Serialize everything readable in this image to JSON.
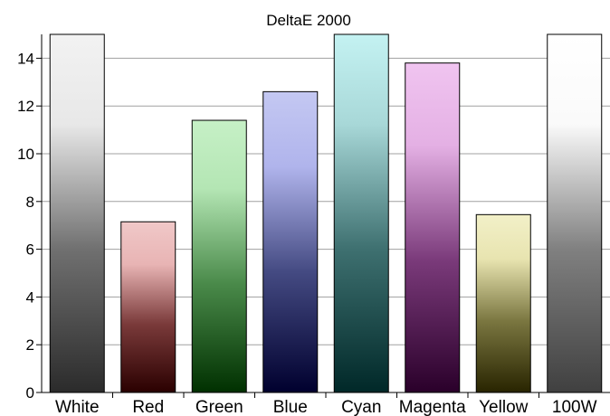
{
  "chart_data": {
    "type": "bar",
    "title": "DeltaE 2000",
    "xlabel": "",
    "ylabel": "",
    "ylim": [
      0,
      15
    ],
    "yticks": [
      0,
      2,
      4,
      6,
      8,
      10,
      12,
      14
    ],
    "grid": true,
    "legend": "none",
    "categories": [
      "White",
      "Red",
      "Green",
      "Blue",
      "Cyan",
      "Magenta",
      "Yellow",
      "100W"
    ],
    "values": [
      15,
      7.15,
      11.4,
      12.6,
      15,
      13.8,
      7.45,
      15
    ],
    "bar_colors": [
      [
        "#f2f2f2",
        "#e8e8e8",
        "#707070",
        "#2b2b2b"
      ],
      [
        "#f0c8c8",
        "#e8b4b4",
        "#7a3a3a",
        "#2a0000"
      ],
      [
        "#c6f0c6",
        "#b4e6b4",
        "#4a8a4a",
        "#003000"
      ],
      [
        "#c4c8f2",
        "#b0b4ec",
        "#444a82",
        "#00002e"
      ],
      [
        "#c4f2f2",
        "#a8d8d8",
        "#3e7070",
        "#002828"
      ],
      [
        "#f0c4f0",
        "#e4b0e4",
        "#7a3a7a",
        "#2a002a"
      ],
      [
        "#f2f0c8",
        "#e8e4b0",
        "#7a7640",
        "#282400"
      ],
      [
        "#ffffff",
        "#fafafa",
        "#808080",
        "#404040"
      ]
    ]
  }
}
